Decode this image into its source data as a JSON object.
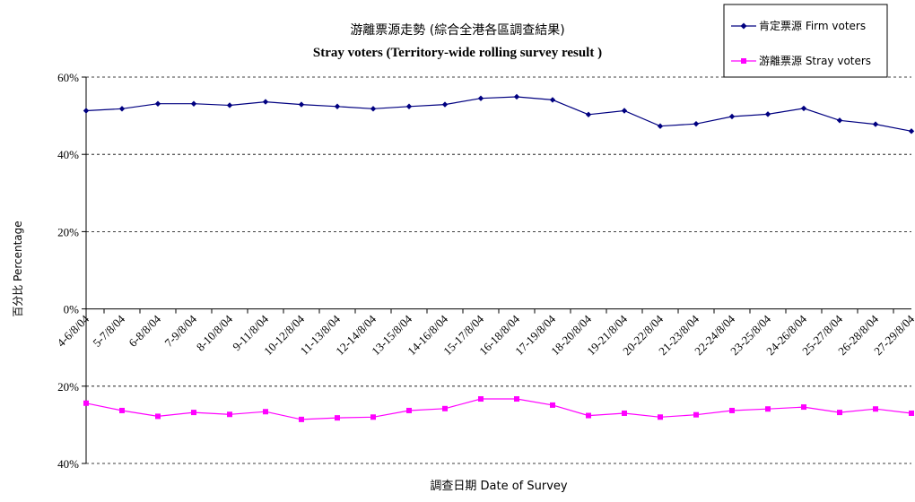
{
  "chart_data": {
    "type": "line",
    "title": "游離票源走勢 (綜合全港各區調查結果)",
    "subtitle": "Stray voters (Territory-wide rolling survey result )",
    "xlabel": "調查日期 Date of Survey",
    "ylabel": "百分比 Percentage",
    "ylim": [
      -40,
      60
    ],
    "yticks": [
      {
        "value": 60,
        "label": "60%"
      },
      {
        "value": 40,
        "label": "40%"
      },
      {
        "value": 20,
        "label": "20%"
      },
      {
        "value": 0,
        "label": "0%"
      },
      {
        "value": -20,
        "label": "20%"
      },
      {
        "value": -40,
        "label": "40%"
      }
    ],
    "grid": true,
    "legend_position": "top-right",
    "categories": [
      "4-6/8/04",
      "5-7/8/04",
      "6-8/8/04",
      "7-9/8/04",
      "8-10/8/04",
      "9-11/8/04",
      "10-12/8/04",
      "11-13/8/04",
      "12-14/8/04",
      "13-15/8/04",
      "14-16/8/04",
      "15-17/8/04",
      "16-18/8/04",
      "17-19/8/04",
      "18-20/8/04",
      "19-21/8/04",
      "20-22/8/04",
      "21-23/8/04",
      "22-24/8/04",
      "23-25/8/04",
      "24-26/8/04",
      "25-27/8/04",
      "26-28/8/04",
      "27-29/8/04"
    ],
    "series": [
      {
        "name": "肯定票源 Firm voters",
        "color": "#000080",
        "marker": "diamond",
        "values": [
          51.3,
          51.8,
          53.1,
          53.1,
          52.7,
          53.6,
          52.9,
          52.4,
          51.8,
          52.4,
          52.9,
          54.5,
          54.9,
          54.1,
          50.3,
          51.3,
          47.3,
          47.9,
          49.8,
          50.4,
          51.9,
          48.8,
          47.8,
          46.0
        ]
      },
      {
        "name": "游離票源 Stray voters",
        "color": "#FF00FF",
        "marker": "square",
        "values": [
          -24.4,
          -26.3,
          -27.8,
          -26.8,
          -27.3,
          -26.6,
          -28.6,
          -28.2,
          -28.0,
          -26.3,
          -25.8,
          -23.3,
          -23.3,
          -24.9,
          -27.6,
          -27.0,
          -28.0,
          -27.4,
          -26.3,
          -25.9,
          -25.4,
          -26.8,
          -25.9,
          -27.0
        ]
      }
    ]
  }
}
